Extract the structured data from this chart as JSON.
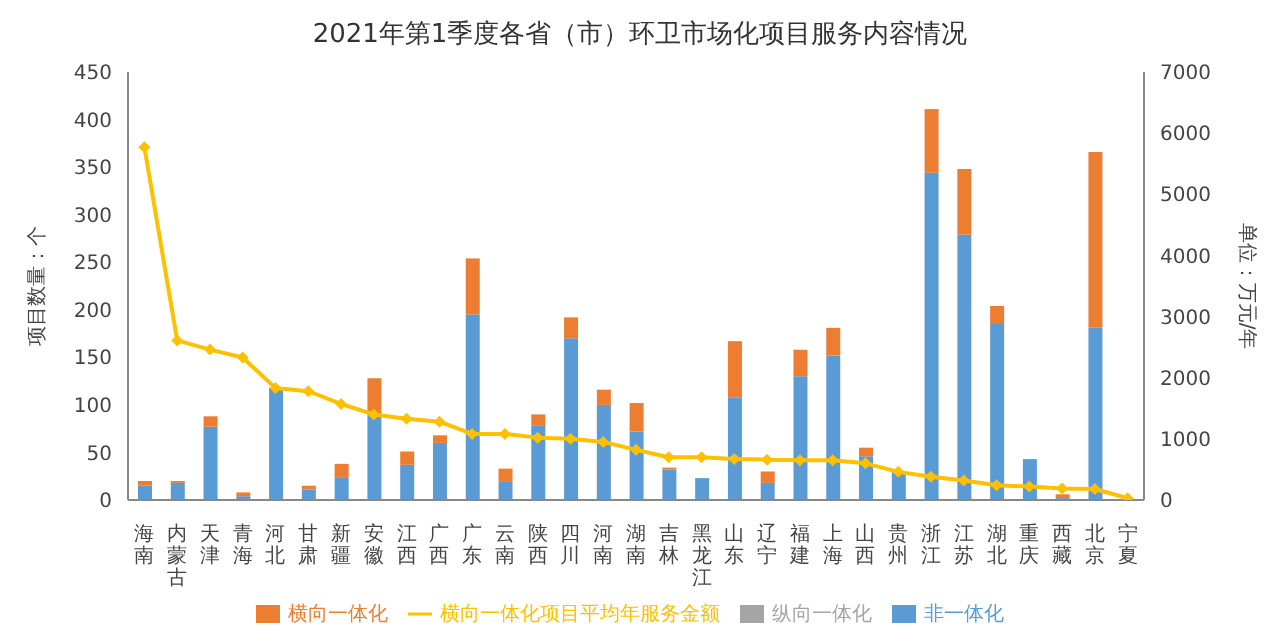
{
  "chart_data": {
    "type": "bar",
    "title": "2021年第1季度各省（市）环卫市场化项目服务内容情况",
    "ylabel": "项目数量：个",
    "y2label": "单位：万元/年",
    "categories": [
      "海南",
      "内蒙古",
      "天津",
      "青海",
      "河北",
      "甘肃",
      "新疆",
      "安徽",
      "江西",
      "广西",
      "广东",
      "云南",
      "陕西",
      "四川",
      "河南",
      "湖南",
      "吉林",
      "黑龙江",
      "山东",
      "辽宁",
      "福建",
      "上海",
      "山西",
      "贵州",
      "浙江",
      "江苏",
      "湖北",
      "重庆",
      "西藏",
      "北京",
      "宁夏"
    ],
    "stacked": true,
    "legend": "bottom",
    "marker": "diamond",
    "line_style": "solid",
    "ylim": [
      0,
      450
    ],
    "yticks": [
      0,
      50,
      100,
      150,
      200,
      250,
      300,
      350,
      400,
      450
    ],
    "y2lim": [
      0,
      7000
    ],
    "y2ticks": [
      0,
      1000,
      2000,
      3000,
      4000,
      5000,
      6000,
      7000
    ],
    "series": [
      {
        "name": "非一体化",
        "color": "#5b9bd5",
        "values": [
          15,
          18,
          77,
          4,
          118,
          11,
          24,
          90,
          37,
          60,
          195,
          19,
          78,
          170,
          100,
          72,
          32,
          23,
          108,
          18,
          130,
          152,
          46,
          30,
          344,
          279,
          185,
          43,
          2,
          181,
          0
        ]
      },
      {
        "name": "横向一体化",
        "color": "#ed7d31",
        "values": [
          5,
          2,
          11,
          4,
          null,
          4,
          14,
          38,
          14,
          8,
          59,
          14,
          12,
          22,
          16,
          30,
          2,
          0,
          59,
          12,
          28,
          29,
          9,
          0,
          67,
          69,
          19,
          0,
          4,
          185,
          0
        ]
      },
      {
        "name": "纵向一体化",
        "color": "#a5a5a5",
        "values": [
          0,
          0,
          0,
          0,
          0,
          0,
          0,
          0,
          0,
          0,
          0,
          0,
          0,
          0,
          0,
          0,
          0,
          0,
          0,
          0,
          0,
          0,
          0,
          0,
          0,
          0,
          0,
          0,
          0,
          0,
          0
        ]
      },
      {
        "name": "横向一体化项目平均年服务金额",
        "type": "line",
        "axis": "y2",
        "color": "#ffc000",
        "values": [
          5770,
          2610,
          2460,
          2330,
          1830,
          1780,
          1570,
          1400,
          1330,
          1280,
          1080,
          1080,
          1020,
          1000,
          950,
          820,
          700,
          700,
          670,
          660,
          650,
          650,
          600,
          460,
          380,
          320,
          240,
          220,
          190,
          180,
          30
        ]
      }
    ]
  }
}
